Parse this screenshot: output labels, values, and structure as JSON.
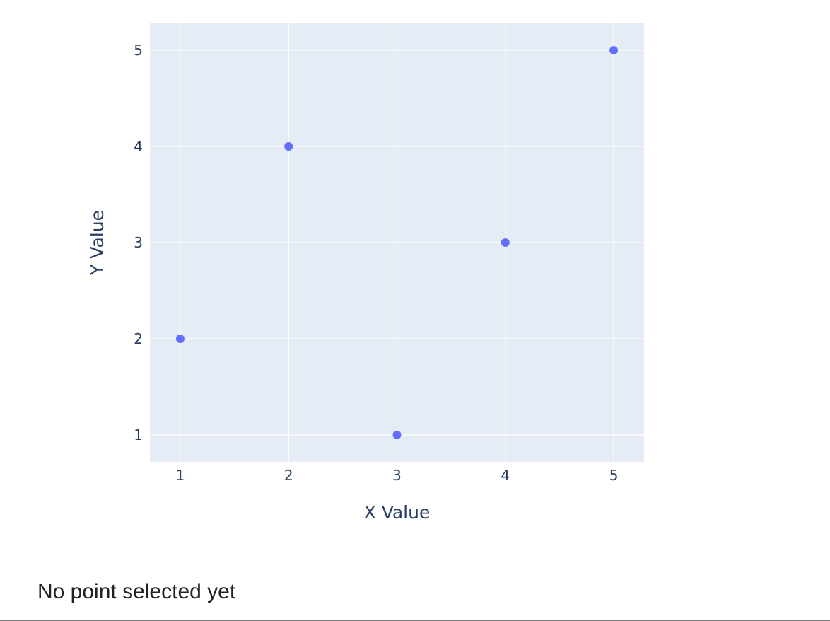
{
  "chart_data": {
    "type": "scatter",
    "x": [
      1,
      2,
      3,
      4,
      5
    ],
    "y": [
      2,
      4,
      1,
      3,
      5
    ],
    "xlabel": "X Value",
    "ylabel": "Y Value",
    "xlim": [
      0.72,
      5.28
    ],
    "ylim": [
      0.72,
      5.28
    ],
    "xticks": [
      1,
      2,
      3,
      4,
      5
    ],
    "yticks": [
      1,
      2,
      3,
      4,
      5
    ],
    "grid": true,
    "marker_color": "#636efa",
    "plot_bgcolor": "#e5ecf6",
    "gridline_color": "#ffffff",
    "text_color": "#2a3f5f"
  },
  "status": {
    "message": "No point selected yet"
  }
}
